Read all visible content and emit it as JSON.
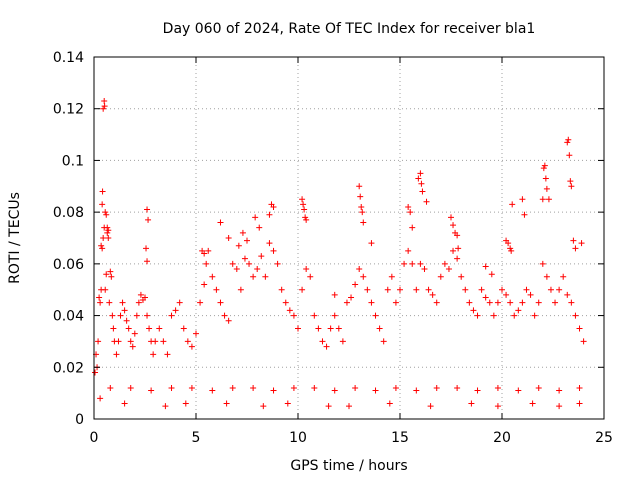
{
  "chart_data": {
    "type": "scatter",
    "title": "Day 060 of 2024, Rate Of TEC Index for receiver bla1",
    "xlabel": "GPS time / hours",
    "ylabel": "ROTI / TECUs",
    "xlim": [
      0,
      25
    ],
    "ylim": [
      0,
      0.14
    ],
    "x_ticks": [
      0,
      5,
      10,
      15,
      20,
      25
    ],
    "x_tick_labels": [
      "0",
      "5",
      "10",
      "15",
      "20",
      "25"
    ],
    "y_ticks": [
      0,
      0.02,
      0.04,
      0.06,
      0.08,
      0.1,
      0.12,
      0.14
    ],
    "y_tick_labels": [
      "0",
      "0.02",
      "0.04",
      "0.06",
      "0.08",
      "0.1",
      "0.12",
      "0.14"
    ],
    "grid": true,
    "marker": "+",
    "color": "#ff0000",
    "series": [
      {
        "name": "ROTI",
        "x": [
          0.05,
          0.1,
          0.15,
          0.2,
          0.25,
          0.3,
          0.35,
          0.4,
          0.45,
          0.5,
          0.55,
          0.6,
          0.65,
          0.7,
          0.75,
          0.8,
          0.85,
          0.9,
          0.95,
          1.0,
          1.1,
          1.2,
          1.3,
          1.4,
          1.5,
          1.6,
          1.7,
          1.8,
          1.9,
          2.0,
          2.1,
          2.2,
          2.3,
          2.4,
          2.5,
          2.6,
          2.7,
          2.8,
          2.9,
          3.0,
          3.2,
          3.4,
          3.6,
          3.8,
          4.0,
          4.2,
          4.4,
          4.6,
          4.8,
          5.0,
          5.2,
          5.4,
          5.6,
          5.8,
          6.0,
          6.2,
          6.4,
          6.6,
          6.8,
          7.0,
          7.2,
          7.4,
          7.6,
          7.8,
          8.0,
          8.2,
          8.4,
          8.6,
          8.8,
          9.0,
          9.2,
          9.4,
          9.6,
          9.8,
          10.0,
          10.2,
          10.4,
          10.6,
          10.8,
          11.0,
          11.2,
          11.4,
          11.6,
          11.8,
          12.0,
          12.2,
          12.4,
          12.6,
          12.8,
          13.0,
          13.2,
          13.4,
          13.6,
          13.8,
          14.0,
          14.2,
          14.4,
          14.6,
          14.8,
          15.0,
          15.2,
          15.4,
          15.6,
          15.8,
          16.0,
          16.2,
          16.4,
          16.6,
          16.8,
          17.0,
          17.2,
          17.4,
          17.6,
          17.8,
          18.0,
          18.2,
          18.4,
          18.6,
          18.8,
          19.0,
          19.2,
          19.4,
          19.6,
          19.8,
          20.0,
          20.2,
          20.4,
          20.6,
          20.8,
          21.0,
          21.2,
          21.4,
          21.6,
          21.8,
          22.0,
          22.2,
          22.4,
          22.6,
          22.8,
          23.0,
          23.2,
          23.4,
          23.6,
          23.8,
          24.0,
          0.45,
          0.5,
          0.52,
          0.4,
          0.42,
          0.55,
          0.6,
          0.65,
          0.7,
          0.35,
          2.6,
          2.65,
          2.55,
          2.6,
          5.3,
          5.4,
          5.5,
          6.2,
          6.6,
          7.1,
          7.3,
          7.5,
          7.9,
          8.1,
          8.6,
          8.7,
          8.8,
          10.2,
          10.25,
          10.3,
          10.35,
          10.4,
          11.8,
          13.0,
          13.05,
          13.1,
          13.15,
          13.2,
          13.6,
          15.4,
          15.5,
          15.6,
          15.9,
          16.0,
          16.05,
          16.1,
          16.3,
          17.5,
          17.6,
          17.7,
          17.8,
          17.85,
          19.2,
          19.5,
          20.2,
          20.3,
          20.4,
          20.45,
          20.5,
          21.0,
          21.1,
          22.0,
          22.05,
          22.1,
          22.15,
          22.2,
          22.3,
          23.2,
          23.25,
          23.3,
          23.35,
          23.4,
          23.5,
          23.6,
          23.9,
          0.3,
          1.5,
          3.5,
          4.5,
          6.5,
          8.3,
          9.5,
          11.5,
          12.5,
          14.5,
          16.5,
          18.5,
          19.8,
          21.5,
          22.8,
          23.8,
          0.8,
          1.8,
          2.8,
          3.8,
          4.8,
          5.8,
          6.8,
          7.8,
          8.8,
          9.8,
          10.8,
          11.8,
          12.8,
          13.8,
          14.8,
          15.8,
          16.8,
          17.8,
          18.8,
          19.8,
          20.8,
          21.8,
          22.8,
          23.8
        ],
        "y": [
          0.018,
          0.025,
          0.02,
          0.03,
          0.047,
          0.045,
          0.05,
          0.066,
          0.07,
          0.074,
          0.05,
          0.056,
          0.072,
          0.07,
          0.045,
          0.057,
          0.055,
          0.04,
          0.035,
          0.03,
          0.025,
          0.03,
          0.04,
          0.045,
          0.042,
          0.038,
          0.035,
          0.03,
          0.028,
          0.033,
          0.04,
          0.045,
          0.048,
          0.046,
          0.047,
          0.04,
          0.035,
          0.03,
          0.025,
          0.03,
          0.035,
          0.03,
          0.025,
          0.04,
          0.042,
          0.045,
          0.035,
          0.03,
          0.028,
          0.033,
          0.045,
          0.052,
          0.065,
          0.055,
          0.05,
          0.045,
          0.04,
          0.038,
          0.06,
          0.058,
          0.05,
          0.062,
          0.06,
          0.055,
          0.058,
          0.063,
          0.055,
          0.068,
          0.065,
          0.06,
          0.05,
          0.045,
          0.042,
          0.04,
          0.035,
          0.05,
          0.058,
          0.055,
          0.04,
          0.035,
          0.03,
          0.028,
          0.035,
          0.04,
          0.035,
          0.03,
          0.045,
          0.047,
          0.052,
          0.058,
          0.055,
          0.05,
          0.045,
          0.04,
          0.035,
          0.03,
          0.05,
          0.055,
          0.045,
          0.05,
          0.06,
          0.065,
          0.06,
          0.05,
          0.06,
          0.058,
          0.05,
          0.048,
          0.045,
          0.055,
          0.06,
          0.058,
          0.065,
          0.062,
          0.055,
          0.05,
          0.045,
          0.042,
          0.04,
          0.05,
          0.047,
          0.045,
          0.04,
          0.045,
          0.05,
          0.048,
          0.045,
          0.04,
          0.042,
          0.045,
          0.05,
          0.048,
          0.04,
          0.045,
          0.06,
          0.055,
          0.05,
          0.045,
          0.05,
          0.055,
          0.048,
          0.045,
          0.04,
          0.035,
          0.03,
          0.12,
          0.123,
          0.121,
          0.083,
          0.088,
          0.08,
          0.079,
          0.074,
          0.073,
          0.067,
          0.081,
          0.077,
          0.066,
          0.061,
          0.065,
          0.064,
          0.06,
          0.076,
          0.07,
          0.067,
          0.072,
          0.069,
          0.078,
          0.074,
          0.079,
          0.083,
          0.082,
          0.085,
          0.083,
          0.081,
          0.078,
          0.077,
          0.048,
          0.09,
          0.086,
          0.082,
          0.08,
          0.076,
          0.068,
          0.082,
          0.08,
          0.074,
          0.093,
          0.095,
          0.091,
          0.088,
          0.084,
          0.078,
          0.075,
          0.072,
          0.071,
          0.066,
          0.059,
          0.056,
          0.069,
          0.068,
          0.066,
          0.065,
          0.083,
          0.085,
          0.079,
          0.085,
          0.097,
          0.098,
          0.093,
          0.089,
          0.085,
          0.107,
          0.108,
          0.102,
          0.092,
          0.09,
          0.069,
          0.066,
          0.068,
          0.008,
          0.006,
          0.005,
          0.006,
          0.006,
          0.005,
          0.006,
          0.005,
          0.005,
          0.006,
          0.005,
          0.006,
          0.005,
          0.006,
          0.005,
          0.006,
          0.012,
          0.012,
          0.011,
          0.012,
          0.012,
          0.011,
          0.012,
          0.012,
          0.011,
          0.012,
          0.012,
          0.011,
          0.012,
          0.011,
          0.012,
          0.011,
          0.012,
          0.012,
          0.011,
          0.012,
          0.011,
          0.012,
          0.011,
          0.012
        ]
      }
    ]
  }
}
